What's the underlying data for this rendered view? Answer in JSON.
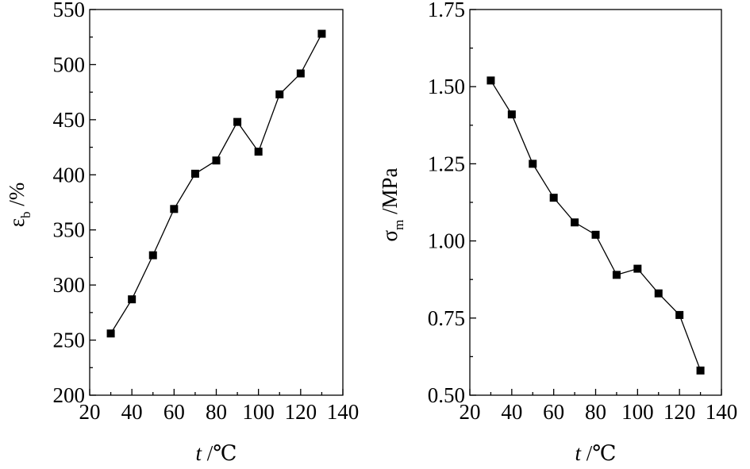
{
  "chart_data": [
    {
      "type": "line",
      "xlabel": {
        "italic": "t",
        "rest": " /℃"
      },
      "ylabel": {
        "main": "ε",
        "sub": "b",
        "rest": " /%"
      },
      "xlim": [
        20,
        140
      ],
      "ylim": [
        200,
        550
      ],
      "x_ticks": [
        20,
        40,
        60,
        80,
        100,
        120,
        140
      ],
      "y_ticks": [
        200,
        250,
        300,
        350,
        400,
        450,
        500,
        550
      ],
      "y_tick_labels": [
        "200",
        "250",
        "300",
        "350",
        "400",
        "450",
        "500",
        "550"
      ],
      "series": [
        {
          "x": [
            30,
            40,
            50,
            60,
            70,
            80,
            90,
            100,
            110,
            120,
            130
          ],
          "values": [
            256,
            287,
            327,
            369,
            401,
            413,
            448,
            421,
            473,
            492,
            528
          ],
          "marker": "square"
        }
      ]
    },
    {
      "type": "line",
      "xlabel": {
        "italic": "t",
        "rest": " /℃"
      },
      "ylabel": {
        "main": "σ",
        "sub": "m",
        "rest": " /MPa"
      },
      "xlim": [
        20,
        140
      ],
      "ylim": [
        0.5,
        1.75
      ],
      "x_ticks": [
        20,
        40,
        60,
        80,
        100,
        120,
        140
      ],
      "y_ticks": [
        0.5,
        0.75,
        1.0,
        1.25,
        1.5,
        1.75
      ],
      "y_tick_labels": [
        "0.50",
        "0.75",
        "1.00",
        "1.25",
        "1.50",
        "1.75"
      ],
      "series": [
        {
          "x": [
            30,
            40,
            50,
            60,
            70,
            80,
            90,
            100,
            110,
            120,
            130
          ],
          "values": [
            1.52,
            1.41,
            1.25,
            1.14,
            1.06,
            1.02,
            0.89,
            0.91,
            0.83,
            0.76,
            0.58
          ],
          "marker": "square"
        }
      ]
    }
  ]
}
